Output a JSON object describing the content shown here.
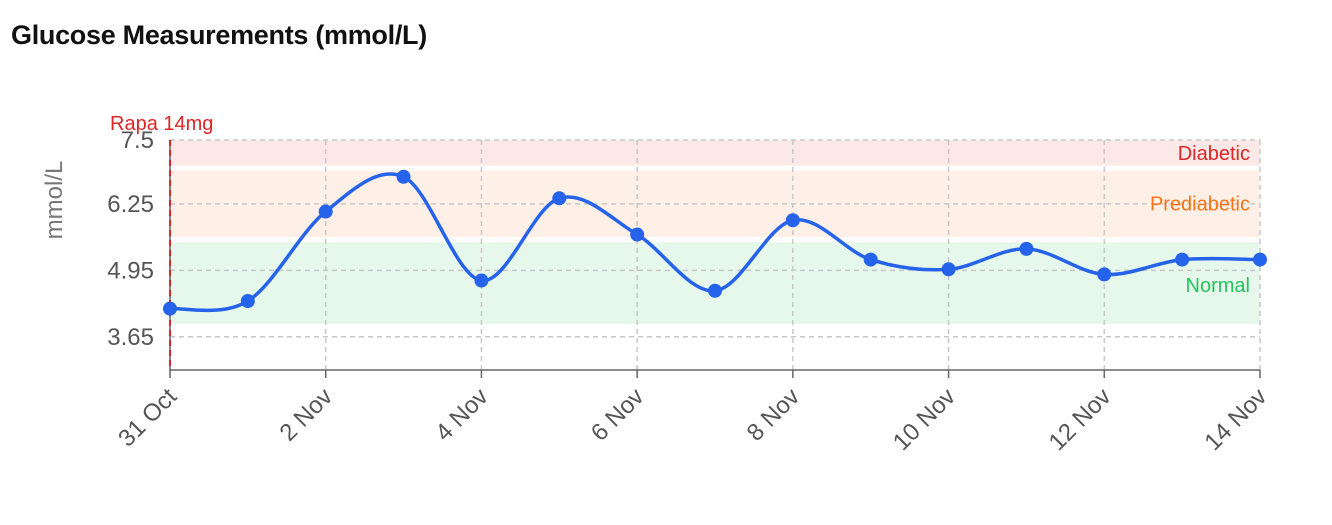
{
  "chart_data": {
    "type": "line",
    "title": "Glucose Measurements (mmol/L)",
    "ylabel": "mmol/L",
    "xlabel": "",
    "ylim": [
      3.0,
      7.5
    ],
    "yticks": [
      "3.65",
      "4.95",
      "6.25",
      "7.5"
    ],
    "x_ticks": [
      "31 Oct",
      "2 Nov",
      "4 Nov",
      "6 Nov",
      "8 Nov",
      "10 Nov",
      "12 Nov",
      "14 Nov"
    ],
    "x": [
      "31 Oct",
      "1 Nov",
      "2 Nov",
      "3 Nov",
      "4 Nov",
      "5 Nov",
      "6 Nov",
      "7 Nov",
      "8 Nov",
      "9 Nov",
      "10 Nov",
      "11 Nov",
      "12 Nov",
      "13 Nov",
      "14 Nov"
    ],
    "series": [
      {
        "values": [
          4.2,
          4.35,
          6.1,
          6.78,
          4.75,
          6.36,
          5.65,
          4.55,
          5.93,
          5.16,
          4.97,
          5.37,
          4.87,
          5.16,
          5.16
        ],
        "color": "#2563eb"
      }
    ],
    "bands": [
      {
        "label": "Diabetic",
        "from": 7.0,
        "to": 7.5,
        "fill": "#fde8e8",
        "text_color": "#dc2626"
      },
      {
        "label": "Prediabetic",
        "from": 5.6,
        "to": 6.9,
        "fill": "#fef0e6",
        "text_color": "#f97316"
      },
      {
        "label": "Normal",
        "from": 3.9,
        "to": 5.5,
        "fill": "#e6f7ec",
        "text_color": "#22c55e"
      }
    ],
    "markers": [
      {
        "x": "31 Oct",
        "label": "Rapa 14mg",
        "color": "#dc2626"
      }
    ],
    "grid": true,
    "curve": "smooth"
  }
}
